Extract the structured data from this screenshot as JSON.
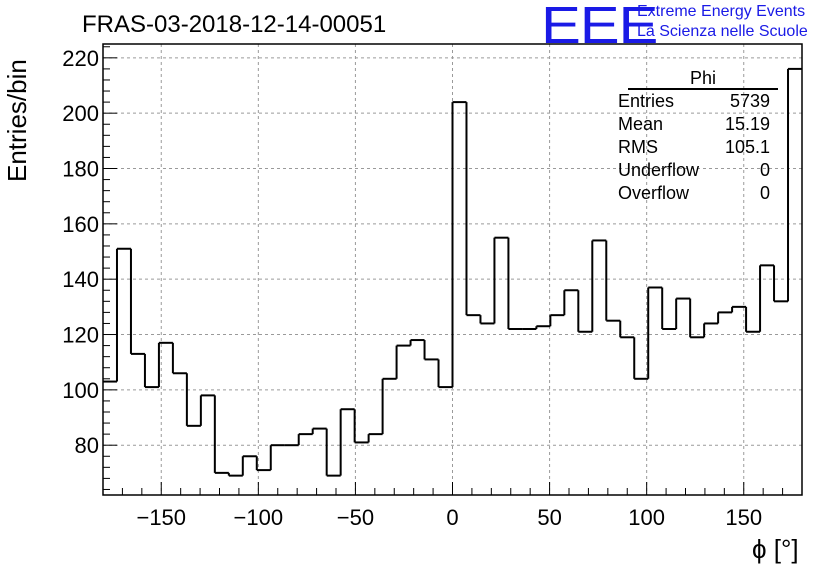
{
  "header": {
    "title": "FRAS-03-2018-12-14-00051",
    "logo_text": "EEE",
    "org_line1": "Extreme Energy Events",
    "org_line2": "La Scienza nelle Scuole"
  },
  "stats": {
    "title": "Phi",
    "rows": [
      {
        "label": "Entries",
        "value": "5739"
      },
      {
        "label": "Mean",
        "value": "15.19"
      },
      {
        "label": "RMS",
        "value": "105.1"
      },
      {
        "label": "Underflow",
        "value": "0"
      },
      {
        "label": "Overflow",
        "value": "0"
      }
    ]
  },
  "chart_data": {
    "type": "histogram",
    "title": "FRAS-03-2018-12-14-00051",
    "xlabel": "ϕ [°]",
    "ylabel": "Entries/bin",
    "xlim": [
      -180,
      180
    ],
    "ylim": [
      62,
      225
    ],
    "bin_width": 7.2,
    "x_ticks": [
      -150,
      -100,
      -50,
      0,
      50,
      100,
      150
    ],
    "y_ticks": [
      80,
      100,
      120,
      140,
      160,
      180,
      200,
      220
    ],
    "grid": true,
    "values": [
      103,
      151,
      113,
      101,
      117,
      106,
      87,
      98,
      70,
      69,
      76,
      71,
      80,
      80,
      84,
      86,
      69,
      93,
      81,
      84,
      104,
      116,
      118,
      111,
      101,
      204,
      127,
      124,
      155,
      122,
      122,
      123,
      127,
      136,
      121,
      154,
      125,
      119,
      104,
      137,
      122,
      133,
      119,
      124,
      128,
      130,
      121,
      145,
      132,
      216
    ],
    "line_color": "#000000"
  }
}
